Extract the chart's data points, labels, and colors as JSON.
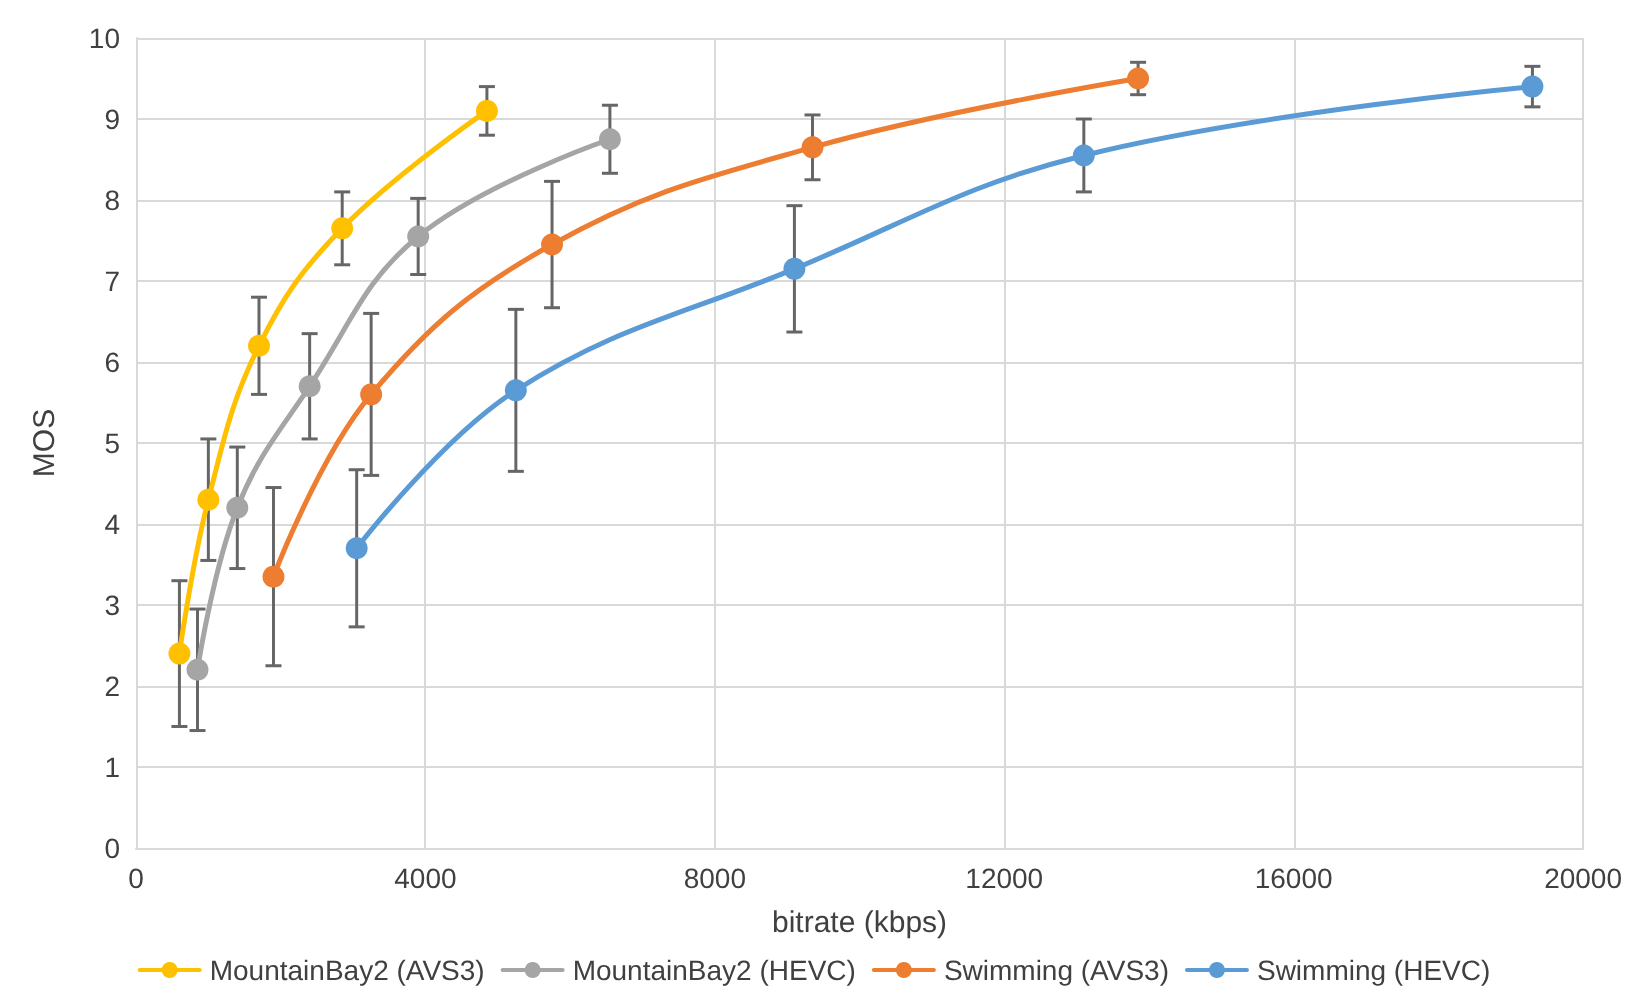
{
  "chart_data": {
    "type": "line",
    "xlabel": "bitrate (kbps)",
    "ylabel": "MOS",
    "xlim": [
      0,
      20000
    ],
    "xticks": [
      0,
      4000,
      8000,
      12000,
      16000,
      20000
    ],
    "ylim": [
      0,
      10
    ],
    "yticks": [
      0,
      1,
      2,
      3,
      4,
      5,
      6,
      7,
      8,
      9,
      10
    ],
    "grid": true,
    "legend": "bottom",
    "marker": "circle",
    "line_style": "solid",
    "series": [
      {
        "name": "MountainBay2 (AVS3)",
        "color": "#ffc000",
        "x": [
          600,
          1000,
          1700,
          2850,
          4850
        ],
        "values": [
          2.4,
          4.3,
          6.2,
          7.65,
          9.1
        ],
        "errors": [
          0.9,
          0.75,
          0.6,
          0.45,
          0.3
        ]
      },
      {
        "name": "MountainBay2 (HEVC)",
        "color": "#a5a5a5",
        "x": [
          850,
          1400,
          2400,
          3900,
          6550
        ],
        "values": [
          2.2,
          4.2,
          5.7,
          7.55,
          8.75
        ],
        "errors": [
          0.75,
          0.75,
          0.65,
          0.47,
          0.42
        ]
      },
      {
        "name": "Swimming (AVS3)",
        "color": "#ed7d31",
        "x": [
          1900,
          3250,
          5750,
          9350,
          13850
        ],
        "values": [
          3.35,
          5.6,
          7.45,
          8.65,
          9.5
        ],
        "errors": [
          1.1,
          1.0,
          0.78,
          0.4,
          0.2
        ]
      },
      {
        "name": "Swimming (HEVC)",
        "color": "#5b9bd5",
        "x": [
          3050,
          5250,
          9100,
          13100,
          19300
        ],
        "values": [
          3.7,
          5.65,
          7.15,
          8.55,
          9.4
        ],
        "errors": [
          0.97,
          1.0,
          0.78,
          0.45,
          0.25
        ]
      }
    ]
  }
}
